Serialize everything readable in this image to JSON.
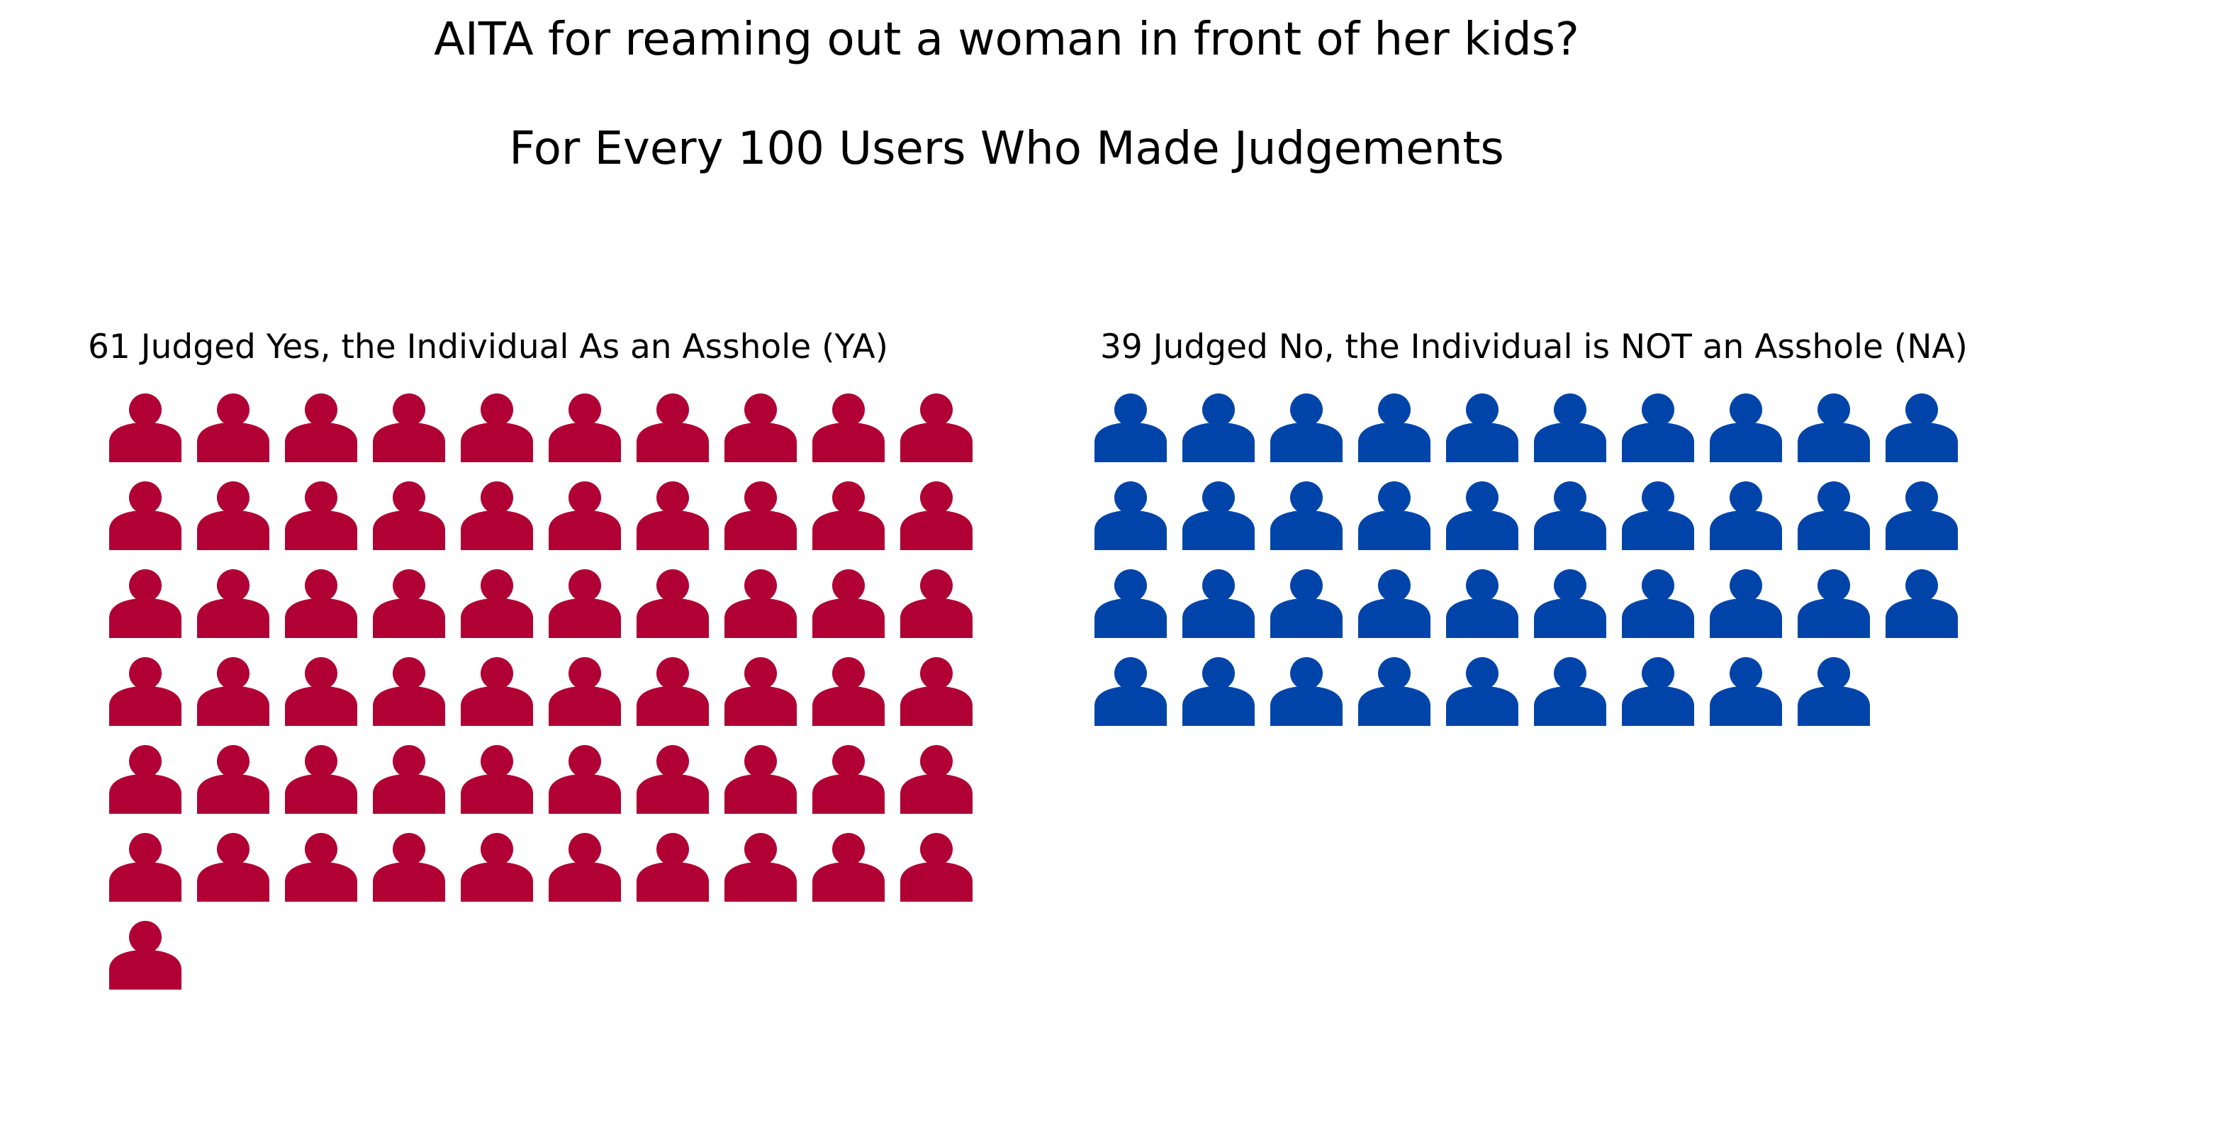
{
  "chart_data": {
    "type": "pictogram",
    "title": "AITA for reaming out a woman in front of her kids?",
    "subtitle": "For Every 100 Users Who Made Judgements",
    "total": 100,
    "icon": "person-icon",
    "series": [
      {
        "name": "YA",
        "label": "61 Judged Yes, the Individual As an Asshole (YA)",
        "value": 61,
        "color": "#b00034"
      },
      {
        "name": "NA",
        "label": "39 Judged No, the Individual is NOT an Asshole (NA)",
        "value": 39,
        "color": "#0044aa"
      }
    ],
    "icons_per_row": 10
  }
}
